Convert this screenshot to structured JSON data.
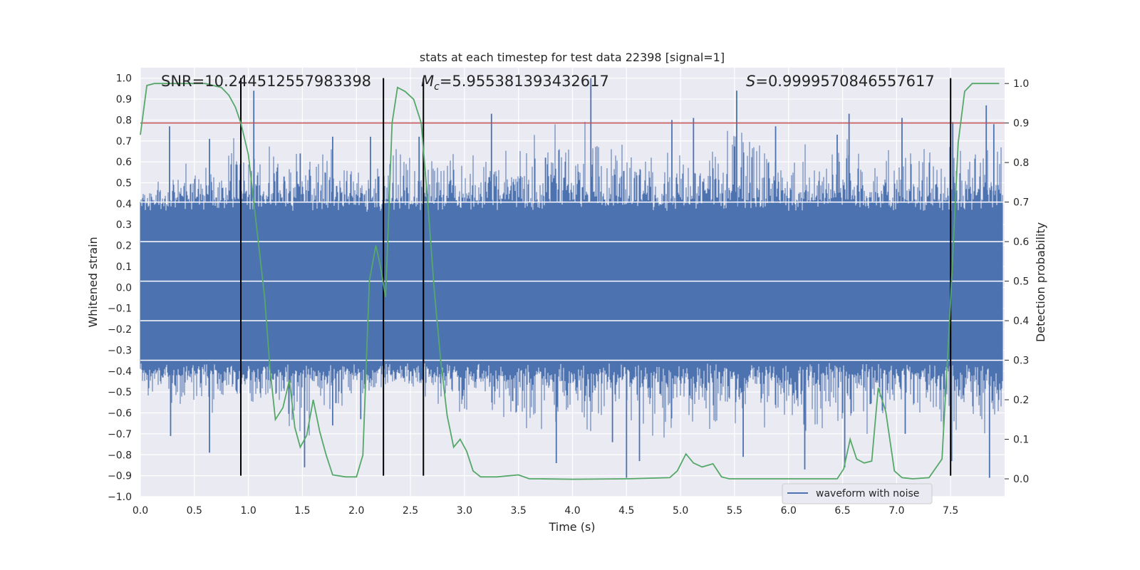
{
  "chart_data": {
    "type": "line",
    "title": "stats at each timestep for test data 22398 [signal=1]",
    "xlabel": "Time (s)",
    "ylabel": "Whitened strain",
    "y2label": "Detection probability",
    "xlim": [
      0.0,
      8.0
    ],
    "ylim": [
      -1.0,
      1.05
    ],
    "y2lim": [
      -0.045,
      1.04
    ],
    "x_ticks": [
      0.0,
      0.5,
      1.0,
      1.5,
      2.0,
      2.5,
      3.0,
      3.5,
      4.0,
      4.5,
      5.0,
      5.5,
      6.0,
      6.5,
      7.0,
      7.5
    ],
    "x_tick_labels": [
      "0.0",
      "0.5",
      "1.0",
      "1.5",
      "2.0",
      "2.5",
      "3.0",
      "3.5",
      "4.0",
      "4.5",
      "5.0",
      "5.5",
      "6.0",
      "6.5",
      "7.0",
      "7.5"
    ],
    "y_ticks": [
      1.0,
      0.9,
      0.8,
      0.7,
      0.6,
      0.5,
      0.4,
      0.3,
      0.2,
      0.1,
      0.0,
      -0.1,
      -0.2,
      -0.3,
      -0.4,
      -0.5,
      -0.6,
      -0.7,
      -0.8,
      -0.9,
      -1.0
    ],
    "y_tick_labels": [
      "1.0",
      "0.9",
      "0.8",
      "0.7",
      "0.6",
      "0.5",
      "0.4",
      "0.3",
      "0.2",
      "0.1",
      "0.0",
      "−0.1",
      "−0.2",
      "−0.3",
      "−0.4",
      "−0.5",
      "−0.6",
      "−0.7",
      "−0.8",
      "−0.9",
      "−1.0"
    ],
    "y2_ticks": [
      1.0,
      0.9,
      0.8,
      0.7,
      0.6,
      0.5,
      0.4,
      0.3,
      0.2,
      0.1,
      0.0
    ],
    "y2_tick_labels": [
      "1.0",
      "0.9",
      "0.8",
      "0.7",
      "0.6",
      "0.5",
      "0.4",
      "0.3",
      "0.2",
      "0.1",
      "0.0"
    ],
    "grid": true,
    "legend": {
      "placement": "lower-right",
      "entries": [
        "waveform with noise"
      ]
    },
    "annotations": {
      "snr": "SNR=10.244512557983398",
      "mc_symbol": "M",
      "mc_sub": "c",
      "mc_value": "=5.955381393432617",
      "s_symbol": "S",
      "s_value": "=0.9999570846557617"
    },
    "threshold": {
      "axis": "secondary",
      "value": 0.9,
      "color": "#c44e52"
    },
    "vlines": [
      0.93,
      2.25,
      2.62,
      7.5
    ],
    "vline_range": [
      -0.9,
      1.0
    ],
    "vline_color": "#000000",
    "series": [
      {
        "name": "waveform with noise",
        "axis": "primary",
        "color": "#4c72b0",
        "envelope": {
          "x": [
            0.0,
            0.5,
            1.0,
            1.5,
            2.0,
            2.5,
            3.0,
            3.5,
            4.0,
            4.5,
            5.0,
            5.5,
            6.0,
            6.5,
            7.0,
            7.5,
            7.95
          ],
          "max": [
            0.5,
            0.77,
            0.94,
            0.77,
            0.72,
            0.8,
            0.73,
            0.87,
            1.0,
            0.8,
            0.82,
            0.93,
            0.77,
            0.83,
            0.81,
            0.79,
            0.87
          ],
          "min": [
            -0.55,
            -0.71,
            -0.6,
            -0.86,
            -0.62,
            -0.57,
            -0.72,
            -0.8,
            -0.84,
            -0.91,
            -0.75,
            -0.82,
            -0.78,
            -0.87,
            -0.7,
            -0.83,
            -0.91
          ]
        },
        "core_band": [
          -0.3,
          0.3
        ],
        "typical_band": [
          -0.42,
          0.42
        ],
        "spikes": [
          [
            0.27,
            0.77
          ],
          [
            0.64,
            0.71
          ],
          [
            1.05,
            0.94
          ],
          [
            1.33,
            0.53
          ],
          [
            1.48,
            0.64
          ],
          [
            1.78,
            0.72
          ],
          [
            2.13,
            0.72
          ],
          [
            2.58,
            0.72
          ],
          [
            3.25,
            0.83
          ],
          [
            3.75,
            0.62
          ],
          [
            4.17,
            1.0
          ],
          [
            4.92,
            0.8
          ],
          [
            5.12,
            0.81
          ],
          [
            5.52,
            0.94
          ],
          [
            5.88,
            0.77
          ],
          [
            6.45,
            0.73
          ],
          [
            6.56,
            0.83
          ],
          [
            7.05,
            0.81
          ],
          [
            7.52,
            0.79
          ],
          [
            7.83,
            0.87
          ],
          [
            7.9,
            0.78
          ],
          [
            0.28,
            -0.71
          ],
          [
            0.64,
            -0.79
          ],
          [
            1.52,
            -0.86
          ],
          [
            1.78,
            -0.66
          ],
          [
            2.04,
            -0.63
          ],
          [
            3.85,
            -0.84
          ],
          [
            4.37,
            -0.74
          ],
          [
            4.5,
            -0.91
          ],
          [
            4.62,
            -0.83
          ],
          [
            5.58,
            -0.81
          ],
          [
            6.15,
            -0.87
          ],
          [
            6.52,
            -0.86
          ],
          [
            7.08,
            -0.7
          ],
          [
            7.51,
            -0.83
          ],
          [
            7.86,
            -0.91
          ]
        ]
      },
      {
        "name": "detection probability",
        "axis": "secondary",
        "color": "#55a868",
        "x": [
          0.0,
          0.06,
          0.13,
          0.3,
          0.6,
          0.75,
          0.82,
          0.88,
          0.93,
          1.0,
          1.1,
          1.15,
          1.2,
          1.25,
          1.32,
          1.38,
          1.43,
          1.48,
          1.54,
          1.6,
          1.66,
          1.72,
          1.78,
          1.9,
          2.0,
          2.06,
          2.12,
          2.18,
          2.22,
          2.27,
          2.33,
          2.38,
          2.45,
          2.53,
          2.6,
          2.66,
          2.72,
          2.78,
          2.84,
          2.9,
          2.96,
          3.02,
          3.08,
          3.15,
          3.3,
          3.5,
          3.6,
          3.7,
          4.0,
          4.5,
          4.9,
          4.97,
          5.05,
          5.12,
          5.2,
          5.3,
          5.38,
          5.45,
          5.55,
          5.8,
          6.0,
          6.45,
          6.51,
          6.57,
          6.63,
          6.7,
          6.77,
          6.83,
          6.9,
          6.98,
          7.05,
          7.15,
          7.3,
          7.42,
          7.5,
          7.57,
          7.63,
          7.7,
          7.8,
          7.95
        ],
        "y": [
          0.87,
          0.995,
          1.0,
          1.0,
          1.0,
          0.99,
          0.97,
          0.94,
          0.9,
          0.82,
          0.58,
          0.46,
          0.28,
          0.15,
          0.18,
          0.25,
          0.13,
          0.08,
          0.11,
          0.2,
          0.12,
          0.06,
          0.01,
          0.005,
          0.005,
          0.06,
          0.5,
          0.59,
          0.54,
          0.46,
          0.9,
          0.99,
          0.98,
          0.96,
          0.9,
          0.7,
          0.48,
          0.3,
          0.16,
          0.08,
          0.1,
          0.07,
          0.02,
          0.005,
          0.005,
          0.01,
          0.0,
          0.0,
          -0.001,
          0.0,
          0.003,
          0.02,
          0.063,
          0.04,
          0.03,
          0.038,
          0.005,
          0.0,
          0.0,
          0.0,
          0.0,
          0.0,
          0.025,
          0.1,
          0.05,
          0.04,
          0.045,
          0.23,
          0.17,
          0.02,
          0.003,
          0.0,
          0.003,
          0.05,
          0.45,
          0.85,
          0.98,
          1.0,
          1.0,
          1.0
        ]
      }
    ]
  }
}
